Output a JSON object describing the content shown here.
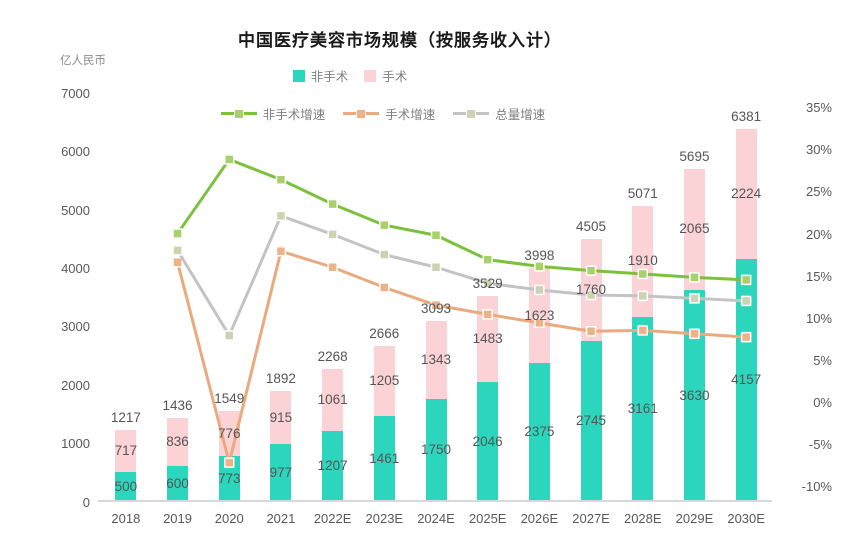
{
  "title": "中国医疗美容市场规模（按服务收入计）",
  "unit_label": "亿人民币",
  "legend": {
    "bars": [
      {
        "label": "非手术",
        "color": "#2bd6bd"
      },
      {
        "label": "手术",
        "color": "#fbd2d6"
      }
    ],
    "lines": [
      {
        "label": "非手术增速",
        "color": "#7cc13e",
        "marker_fill": "#a8d169"
      },
      {
        "label": "手术增速",
        "color": "#eaaa7d",
        "marker_fill": "#edb287"
      },
      {
        "label": "总量增速",
        "color": "#c3c3c3",
        "marker_fill": "#cfd2b2"
      }
    ]
  },
  "chart_data": {
    "type": "bar",
    "subtype": "stacked-bar-with-growth-lines",
    "title": "中国医疗美容市场规模（按服务收入计）",
    "ylabel": "亿人民币",
    "categories": [
      "2018",
      "2019",
      "2020",
      "2021",
      "2022E",
      "2023E",
      "2024E",
      "2025E",
      "2026E",
      "2027E",
      "2028E",
      "2029E",
      "2030E"
    ],
    "series": [
      {
        "name": "非手术",
        "type": "bar",
        "color": "#2bd6bd",
        "values": [
          500,
          600,
          773,
          977,
          1207,
          1461,
          1750,
          2046,
          2375,
          2745,
          3161,
          3630,
          4157
        ]
      },
      {
        "name": "手术",
        "type": "bar",
        "color": "#fbd2d6",
        "values": [
          717,
          836,
          776,
          915,
          1061,
          1205,
          1343,
          1483,
          1623,
          1760,
          1910,
          2065,
          2224
        ]
      }
    ],
    "totals": [
      1217,
      1436,
      1549,
      1892,
      2268,
      2666,
      3093,
      3529,
      3998,
      4505,
      5071,
      5695,
      6381
    ],
    "line_series": [
      {
        "name": "非手术增速",
        "type": "line",
        "color": "#7cc13e",
        "marker_fill": "#a8d169",
        "values_pct": [
          null,
          20.0,
          28.8,
          26.4,
          23.5,
          21.0,
          19.8,
          16.9,
          16.1,
          15.6,
          15.2,
          14.8,
          14.5
        ]
      },
      {
        "name": "手术增速",
        "type": "line",
        "color": "#eaaa7d",
        "marker_fill": "#edb287",
        "values_pct": [
          null,
          16.6,
          -7.2,
          17.9,
          16.0,
          13.6,
          11.5,
          10.4,
          9.4,
          8.4,
          8.5,
          8.1,
          7.7
        ]
      },
      {
        "name": "总量增速",
        "type": "line",
        "color": "#c3c3c3",
        "marker_fill": "#cfd2b2",
        "values_pct": [
          null,
          18.0,
          7.9,
          22.1,
          19.9,
          17.5,
          16.0,
          14.1,
          13.3,
          12.7,
          12.6,
          12.3,
          12.0
        ]
      }
    ],
    "left_axis": {
      "ticks": [
        7000,
        6000,
        5000,
        4000,
        3000,
        2000,
        1000,
        0
      ],
      "min": 0,
      "max": 7000,
      "unit": "亿人民币"
    },
    "right_axis": {
      "ticks": [
        "35%",
        "30%",
        "25%",
        "20%",
        "15%",
        "10%",
        "5%",
        "0%",
        "-5%",
        "-10%"
      ],
      "min_pct": -10,
      "max_pct": 35
    },
    "grid": false,
    "legend_position": "top"
  }
}
